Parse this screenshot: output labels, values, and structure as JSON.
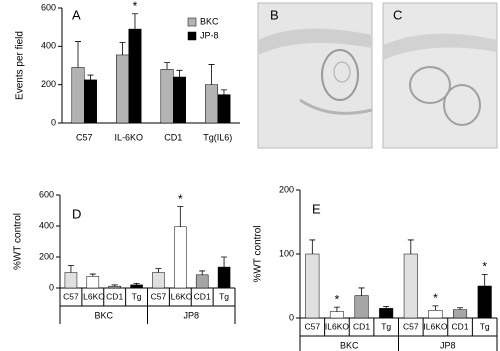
{
  "chart_data": [
    {
      "type": "bar",
      "panel": "A",
      "ylabel": "Events per field",
      "categories": [
        "C57",
        "IL-6KO",
        "CD1",
        "Tg(IL6)"
      ],
      "series": [
        {
          "name": "BKC",
          "color": "#b3b3b3",
          "values": [
            290,
            355,
            280,
            200
          ],
          "errors": [
            135,
            65,
            35,
            105
          ],
          "significant": [
            false,
            false,
            false,
            false
          ]
        },
        {
          "name": "JP-8",
          "color": "#000000",
          "values": [
            225,
            490,
            240,
            148
          ],
          "errors": [
            25,
            80,
            35,
            25
          ],
          "significant": [
            false,
            true,
            false,
            false
          ]
        }
      ],
      "ylim": [
        0,
        600
      ],
      "yticks": [
        0,
        200,
        400,
        600
      ],
      "legend": "upper right",
      "significance_mark": "*"
    },
    {
      "type": "bar",
      "panel": "D",
      "ylabel": "%WT control",
      "categories": [
        "C57",
        "IL6KO",
        "CD1",
        "Tg",
        "C57",
        "IL6KO",
        "CD1",
        "Tg"
      ],
      "groups": [
        "BKC",
        "JP8"
      ],
      "values": [
        100,
        75,
        12,
        20,
        100,
        395,
        85,
        135
      ],
      "errors": [
        45,
        15,
        8,
        10,
        25,
        130,
        25,
        65
      ],
      "colors": [
        "#e0e0e0",
        "#ffffff",
        "#a6a6a6",
        "#000000",
        "#e0e0e0",
        "#ffffff",
        "#a6a6a6",
        "#000000"
      ],
      "significant": [
        false,
        false,
        false,
        false,
        false,
        true,
        false,
        false
      ],
      "ylim": [
        0,
        600
      ],
      "yticks": [
        0,
        200,
        400,
        600
      ],
      "significance_mark": "*"
    },
    {
      "type": "bar",
      "panel": "E",
      "ylabel": "%WT control",
      "categories": [
        "C57",
        "IL6KO",
        "CD1",
        "Tg",
        "C57",
        "IL6KO",
        "CD1",
        "Tg"
      ],
      "groups": [
        "BKC",
        "JP8"
      ],
      "values": [
        100,
        10,
        35,
        15,
        100,
        12,
        13,
        50
      ],
      "errors": [
        22,
        7,
        12,
        3,
        22,
        7,
        3,
        18
      ],
      "colors": [
        "#e0e0e0",
        "#ffffff",
        "#a6a6a6",
        "#000000",
        "#e0e0e0",
        "#ffffff",
        "#a6a6a6",
        "#000000"
      ],
      "significant": [
        false,
        true,
        false,
        false,
        false,
        true,
        false,
        true
      ],
      "ylim": [
        0,
        200
      ],
      "yticks": [
        0,
        100,
        200
      ],
      "significance_mark": "*"
    }
  ],
  "images": [
    {
      "label": "B"
    },
    {
      "label": "C"
    }
  ]
}
